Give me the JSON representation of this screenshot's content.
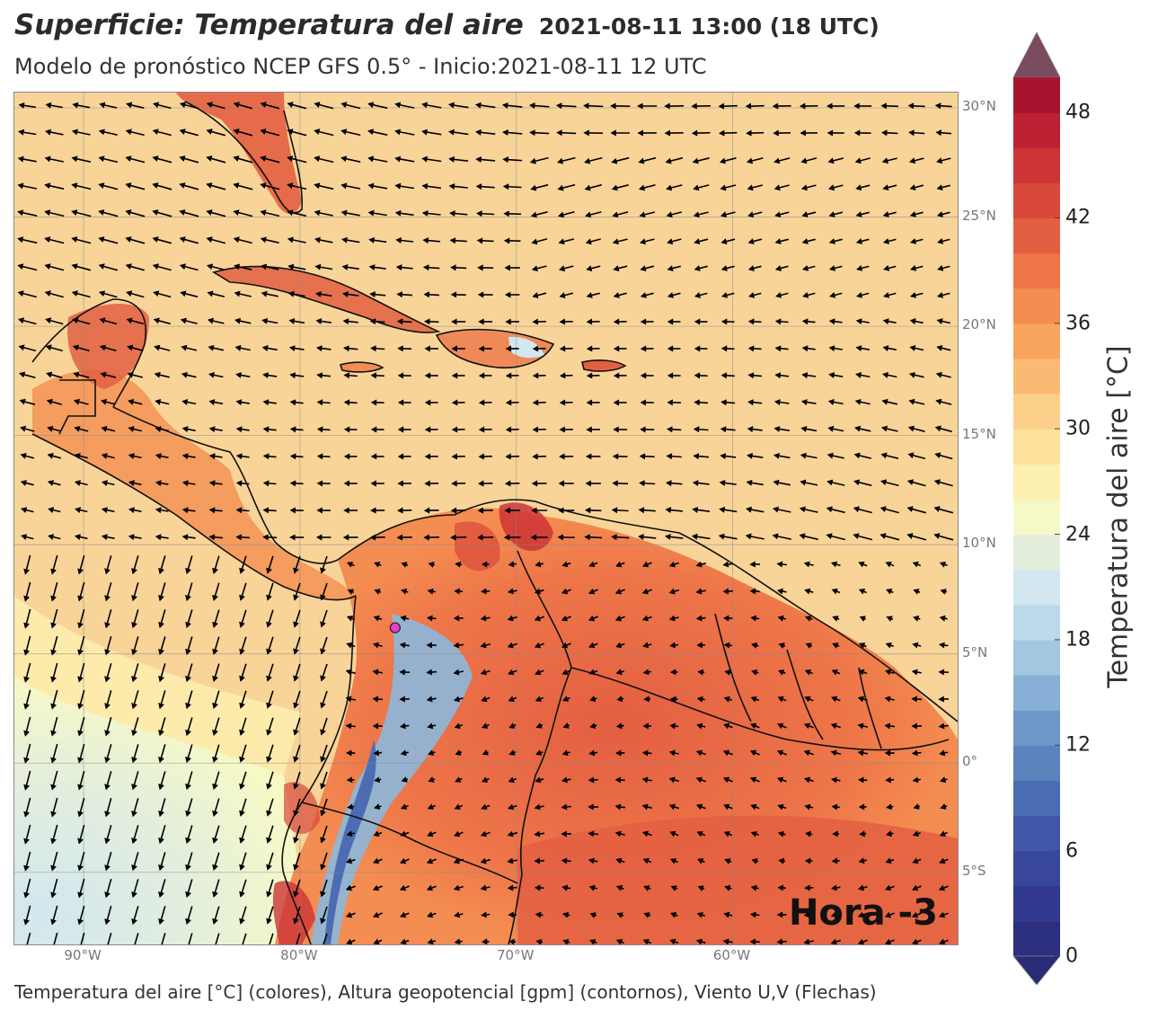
{
  "title": {
    "main": "Superficie: Temperatura del aire",
    "date": "2021-08-11 13:00 (18 UTC)"
  },
  "subtitle": "Modelo de pronóstico NCEP GFS 0.5° - Inicio:2021-08-11 12 UTC",
  "map": {
    "extent": {
      "lon_min": -93.2,
      "lon_max": -49.6,
      "lat_min": -8.3,
      "lat_max": 30.7
    },
    "lat_labels": [
      {
        "lat": 30,
        "text": "30°N"
      },
      {
        "lat": 25,
        "text": "25°N"
      },
      {
        "lat": 20,
        "text": "20°N"
      },
      {
        "lat": 15,
        "text": "15°N"
      },
      {
        "lat": 10,
        "text": "10°N"
      },
      {
        "lat": 5,
        "text": "5°N"
      },
      {
        "lat": 0,
        "text": "0°"
      },
      {
        "lat": -5,
        "text": "5°S"
      }
    ],
    "lon_labels": [
      {
        "lon": -90,
        "text": "90°W"
      },
      {
        "lon": -80,
        "text": "80°W"
      },
      {
        "lon": -70,
        "text": "70°W"
      },
      {
        "lon": -60,
        "text": "60°W"
      }
    ],
    "hora_label": "Hora -3",
    "marker": {
      "lon": -75.6,
      "lat": 6.2,
      "color": "#e040d0"
    },
    "colors": {
      "ocean": "#f9d498",
      "land_warm": "#e8744e",
      "andes_cool": "#8cb8dc",
      "pacific_cool": "#d9ecec",
      "border": "#111111",
      "wind_arrow": "#000000"
    }
  },
  "colorbar": {
    "label": "Temperatura del aire [°C]",
    "min": 0,
    "max": 50,
    "ticks": [
      "0",
      "6",
      "12",
      "18",
      "24",
      "30",
      "36",
      "42",
      "48"
    ],
    "tick_values": [
      0,
      6,
      12,
      18,
      24,
      30,
      36,
      42,
      48
    ],
    "colors": [
      "#2b2f7e",
      "#313a8e",
      "#38479c",
      "#4157a8",
      "#4c6db3",
      "#5b82bd",
      "#6e98c8",
      "#88afd5",
      "#a3c6e1",
      "#bcd9ea",
      "#d2e7ef",
      "#e3eedd",
      "#f6f9c6",
      "#fdf0b0",
      "#fde19b",
      "#fcd08a",
      "#fbba74",
      "#f9a45f",
      "#f48d51",
      "#ee7649",
      "#e35f42",
      "#d8493b",
      "#cc3436",
      "#bd2133",
      "#a8142e"
    ],
    "over_color": "#7a4a5e",
    "under_color": "#2a2c78"
  },
  "footer": "Temperatura del aire [°C] (colores), Altura geopotencial [gpm] (contornos), Viento U,V (Flechas)"
}
